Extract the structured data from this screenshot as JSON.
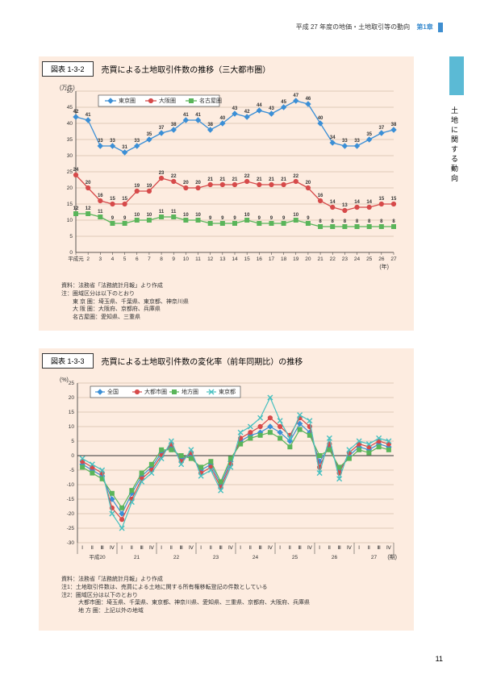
{
  "header": {
    "text": "平成 27 年度の地価・土地取引等の動向",
    "chapter": "第1章"
  },
  "side": {
    "text": "土地に関する動向"
  },
  "page_number": "11",
  "chart1": {
    "type": "line",
    "caption_box": "図表 1-3-2",
    "caption": "売買による土地取引件数の推移（三大都市圏）",
    "y_unit": "(万件)",
    "x_unit": "(年)",
    "x_categories": [
      "平成元",
      "2",
      "3",
      "4",
      "5",
      "6",
      "7",
      "8",
      "9",
      "10",
      "11",
      "12",
      "13",
      "14",
      "15",
      "16",
      "17",
      "18",
      "19",
      "20",
      "21",
      "22",
      "23",
      "24",
      "25",
      "26",
      "27"
    ],
    "ylim": [
      0,
      50
    ],
    "ytick_step": 5,
    "grid_color": "#bfa890",
    "series": [
      {
        "name": "東京圏",
        "color": "#3b8fd6",
        "marker": "diamond",
        "values": [
          42,
          41,
          33,
          33,
          31,
          33,
          35,
          37,
          38,
          41,
          41,
          38,
          40,
          43,
          42,
          44,
          43,
          45,
          47,
          46,
          40,
          34,
          33,
          33,
          35,
          37,
          38
        ]
      },
      {
        "name": "大阪圏",
        "color": "#d64a4a",
        "marker": "circle",
        "values": [
          24,
          20,
          16,
          15,
          15,
          19,
          19,
          23,
          22,
          20,
          20,
          21,
          21,
          21,
          22,
          21,
          21,
          21,
          22,
          20,
          16,
          14,
          13,
          14,
          14,
          15,
          15
        ]
      },
      {
        "name": "名古屋圏",
        "color": "#5ab55a",
        "marker": "square",
        "values": [
          12,
          12,
          11,
          9,
          9,
          10,
          10,
          11,
          11,
          10,
          10,
          9,
          9,
          9,
          10,
          9,
          9,
          9,
          10,
          9,
          8,
          8,
          8,
          8,
          8,
          8,
          8
        ]
      }
    ],
    "notes": [
      "資料：法務省「法務統計月報」より作成",
      "注：圏域区分は以下のとおり",
      "　　東 京 圏：埼玉県、千葉県、東京都、神奈川県",
      "　　大 阪 圏：大阪府、京都府、兵庫県",
      "　　名古屋圏：愛知県、三重県"
    ]
  },
  "chart2": {
    "type": "line",
    "caption_box": "図表 1-3-3",
    "caption": "売買による土地取引件数の変化率（前年同期比）の推移",
    "y_unit": "(%)",
    "x_unit": "(期)",
    "years": [
      "平成20",
      "21",
      "22",
      "23",
      "24",
      "25",
      "26",
      "27"
    ],
    "quarters": [
      "Ⅰ",
      "Ⅱ",
      "Ⅲ",
      "Ⅳ"
    ],
    "ylim": [
      -30,
      25
    ],
    "ytick_step": 5,
    "grid_color": "#bfa890",
    "series": [
      {
        "name": "全国",
        "color": "#3b8fd6",
        "marker": "diamond",
        "values": [
          -3,
          -5,
          -7,
          -15,
          -20,
          -13,
          -7,
          -4,
          1,
          3,
          -1,
          0,
          -5,
          -3,
          -10,
          -2,
          5,
          7,
          8,
          10,
          8,
          5,
          11,
          8,
          -2,
          3,
          -5,
          0,
          3,
          2,
          4,
          3
        ]
      },
      {
        "name": "大都市圏",
        "color": "#d64a4a",
        "marker": "circle",
        "values": [
          -2,
          -4,
          -6,
          -18,
          -22,
          -15,
          -8,
          -5,
          0,
          4,
          -2,
          1,
          -6,
          -4,
          -11,
          -3,
          6,
          8,
          10,
          13,
          10,
          7,
          13,
          10,
          -4,
          4,
          -6,
          1,
          4,
          3,
          5,
          4
        ]
      },
      {
        "name": "地方圏",
        "color": "#5ab55a",
        "marker": "square",
        "values": [
          -4,
          -6,
          -8,
          -13,
          -18,
          -12,
          -6,
          -3,
          2,
          2,
          0,
          -1,
          -4,
          -2,
          -9,
          -1,
          4,
          6,
          7,
          8,
          6,
          3,
          9,
          7,
          0,
          2,
          -4,
          -1,
          2,
          1,
          3,
          2
        ]
      },
      {
        "name": "東京都",
        "color": "#48c0c0",
        "marker": "x",
        "values": [
          -1,
          -3,
          -5,
          -20,
          -25,
          -16,
          -9,
          -6,
          -1,
          5,
          -3,
          2,
          -7,
          -5,
          -12,
          -4,
          8,
          10,
          13,
          20,
          12,
          6,
          14,
          12,
          -6,
          6,
          -8,
          2,
          5,
          4,
          6,
          5
        ]
      }
    ],
    "notes": [
      "資料：法務省「法務統計月報」より作成",
      "注1：土地取引件数は、売買による土地に関する所有権移転登記の件数としている",
      "注2：圏域区分は以下のとおり",
      "　　　大都市圏：埼玉県、千葉県、東京都、神奈川県、愛知県、三重県、京都府、大阪府、兵庫県",
      "　　　地 方 圏：上記以外の地域"
    ]
  }
}
